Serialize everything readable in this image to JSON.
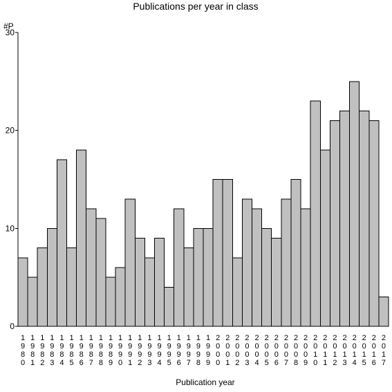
{
  "chart_data": {
    "type": "bar",
    "title": "Publications per year in class",
    "xlabel": "Publication year",
    "ylabel": "#P",
    "ylim": [
      0,
      30
    ],
    "yticks": [
      0,
      10,
      20,
      30
    ],
    "grid": false,
    "categories": [
      "1980",
      "1981",
      "1982",
      "1983",
      "1984",
      "1985",
      "1986",
      "1987",
      "1988",
      "1989",
      "1990",
      "1991",
      "1992",
      "1993",
      "1994",
      "1995",
      "1996",
      "1997",
      "1998",
      "1999",
      "2000",
      "2001",
      "2002",
      "2003",
      "2004",
      "2005",
      "2006",
      "2007",
      "2008",
      "2009",
      "2010",
      "2011",
      "2012",
      "2013",
      "2014",
      "2015",
      "2016",
      "2017"
    ],
    "values": [
      7,
      5,
      8,
      10,
      17,
      8,
      18,
      12,
      11,
      5,
      6,
      13,
      9,
      7,
      9,
      4,
      12,
      8,
      10,
      10,
      15,
      15,
      7,
      13,
      12,
      10,
      9,
      13,
      15,
      12,
      23,
      18,
      21,
      22,
      25,
      22,
      21,
      3
    ],
    "colors": {
      "bar": "#c0c0c0",
      "outline": "#000000"
    }
  }
}
